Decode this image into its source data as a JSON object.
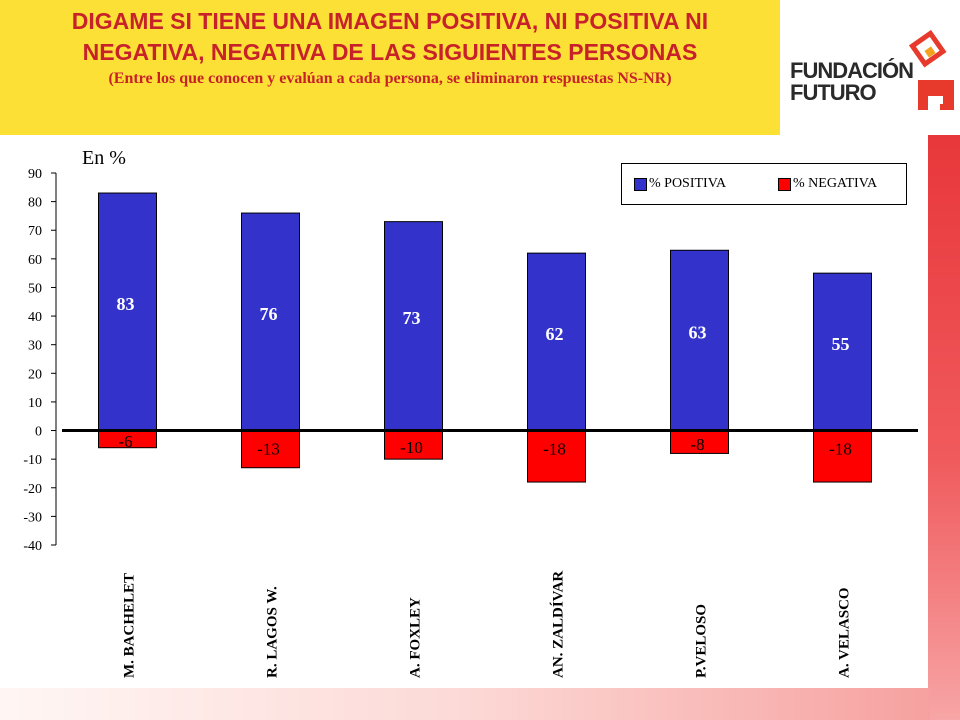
{
  "header": {
    "title": "DIGAME SI TIENE UNA IMAGEN POSITIVA, NI POSITIVA NI NEGATIVA, NEGATIVA DE LAS SIGUIENTES PERSONAS",
    "subtitle": "(Entre los que conocen y evalúan a cada persona, se eliminaron respuestas NS-NR)"
  },
  "logo": {
    "line1": "FUNDACIÓN",
    "line2": "FUTURO"
  },
  "colors": {
    "positive": "#3333cc",
    "negative": "#ff0000",
    "title_bg": "#fde036",
    "title_text": "#c7222a"
  },
  "chart_data": {
    "type": "bar",
    "unit_label": "En %",
    "categories": [
      "M. BACHELET",
      "R. LAGOS W.",
      "A. FOXLEY",
      "AN. ZALDÍVAR",
      "P.VELOSO",
      "A. VELASCO"
    ],
    "series": [
      {
        "name": "% POSITIVA",
        "color": "#3333cc",
        "values": [
          83,
          76,
          73,
          62,
          63,
          55
        ],
        "labels": [
          "83",
          "76",
          "73",
          "62",
          "63",
          "55"
        ]
      },
      {
        "name": "% NEGATIVA",
        "color": "#ff0000",
        "values": [
          -6,
          -13,
          -10,
          -18,
          -8,
          -18
        ],
        "labels": [
          "-6",
          "-13",
          "-10",
          "-18",
          "-8",
          "-18"
        ]
      }
    ],
    "ylim": [
      -40,
      90
    ],
    "yticks": [
      90,
      80,
      70,
      60,
      50,
      40,
      30,
      20,
      10,
      0,
      -10,
      -20,
      -30,
      -40
    ],
    "legend_position": "top-right",
    "grid": false
  }
}
